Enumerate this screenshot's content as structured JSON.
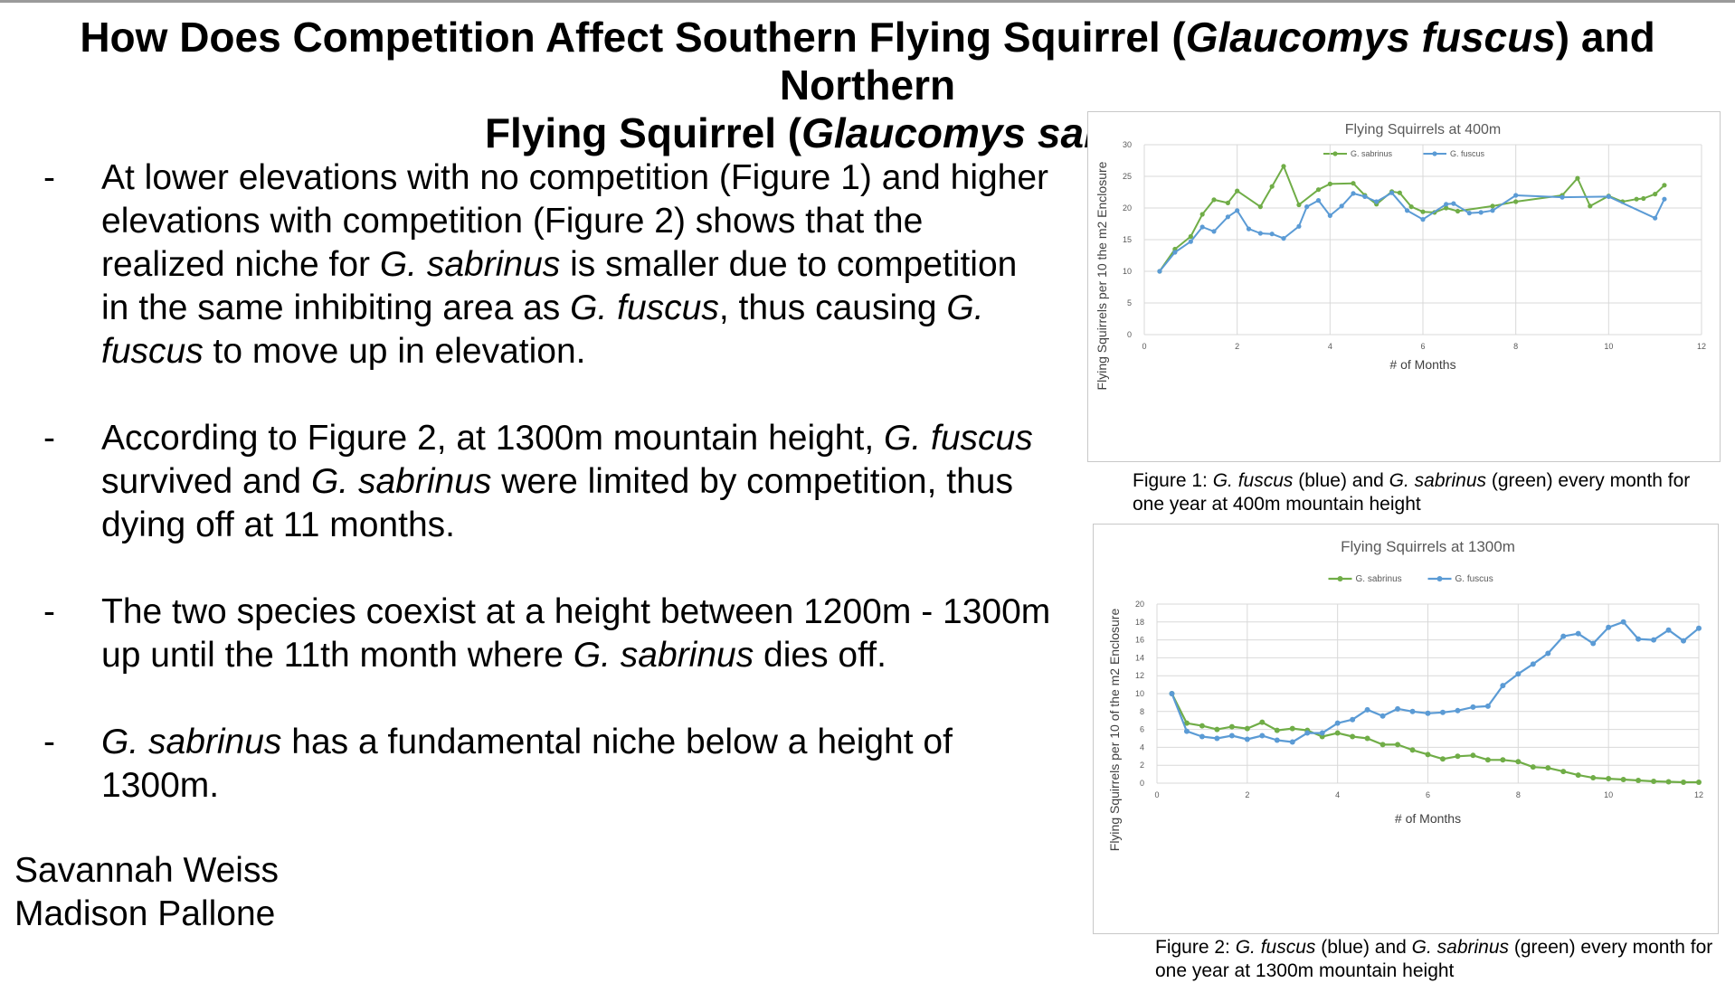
{
  "title": {
    "line1_a": "How Does Competition Affect Southern Flying Squirrel (",
    "line1_i": "Glaucomys fuscus",
    "line1_b": ") and Northern",
    "line2_a": "Flying Squirrel (",
    "line2_i": "Glaucomys sabrinus",
    "line2_b": ")?"
  },
  "bullets": [
    {
      "dash": "-",
      "parts": [
        {
          "t": "At lower elevations with no competition (Figure 1) and higher elevations with competition (Figure 2) shows that the realized niche for ",
          "i": false
        },
        {
          "t": "G. sabrinus",
          "i": true
        },
        {
          "t": " is smaller due to competition in the same inhibiting area as ",
          "i": false
        },
        {
          "t": "G. fuscus",
          "i": true
        },
        {
          "t": ", thus causing ",
          "i": false
        },
        {
          "t": "G. fuscus",
          "i": true
        },
        {
          "t": " to move up in elevation.",
          "i": false
        }
      ]
    },
    {
      "dash": "-",
      "parts": [
        {
          "t": "According to Figure 2, at 1300m mountain height, ",
          "i": false
        },
        {
          "t": "G. fuscus",
          "i": true
        },
        {
          "t": " survived and ",
          "i": false
        },
        {
          "t": "G. sabrinus",
          "i": true
        },
        {
          "t": " were limited by competition, thus dying off at 11 months.",
          "i": false
        }
      ]
    },
    {
      "dash": "-",
      "parts": [
        {
          "t": "The two species coexist at a height between 1200m - 1300m up until the 11th month where ",
          "i": false
        },
        {
          "t": "G. sabrinus",
          "i": true
        },
        {
          "t": " dies off.",
          "i": false
        }
      ]
    },
    {
      "dash": "-",
      "parts": [
        {
          "t": "G. sabrinus",
          "i": true
        },
        {
          "t": " has a fundamental niche below a height of 1300m.",
          "i": false
        }
      ]
    }
  ],
  "authors": [
    "Savannah Weiss",
    "Madison Pallone"
  ],
  "captions": [
    {
      "parts": [
        {
          "t": "Figure 1: ",
          "i": false
        },
        {
          "t": "G. fuscus",
          "i": true
        },
        {
          "t": " (blue) and ",
          "i": false
        },
        {
          "t": "G. sabrinus",
          "i": true
        },
        {
          "t": " (green) every month for one year at 400m mountain height",
          "i": false
        }
      ]
    },
    {
      "parts": [
        {
          "t": "Figure 2: ",
          "i": false
        },
        {
          "t": "G. fuscus",
          "i": true
        },
        {
          "t": " (blue) and ",
          "i": false
        },
        {
          "t": "G. sabrinus",
          "i": true
        },
        {
          "t": " (green) every month for one year at 1300m mountain height",
          "i": false
        }
      ]
    }
  ],
  "colors": {
    "green": "#70ad47",
    "blue": "#5b9bd5",
    "grid": "#d9d9d9",
    "axis_text": "#595959"
  },
  "chart_data": [
    {
      "type": "line",
      "title": "Flying Squirrels at 400m",
      "xlabel": "# of Months",
      "ylabel": "Flying Squirrels per 10  the m2 Enclosure",
      "xlim": [
        0,
        12
      ],
      "ylim": [
        0,
        30
      ],
      "xticks": [
        0,
        2,
        4,
        6,
        8,
        10,
        12
      ],
      "yticks": [
        0,
        5,
        10,
        15,
        20,
        25,
        30
      ],
      "grid": true,
      "legend": "top",
      "series": [
        {
          "name": "G. sabrinus",
          "color": "#70ad47",
          "points": [
            [
              0.33,
              10
            ],
            [
              0.66,
              13.5
            ],
            [
              1,
              15.5
            ],
            [
              1.25,
              19
            ],
            [
              1.5,
              21.3
            ],
            [
              1.8,
              20.8
            ],
            [
              2,
              22.7
            ],
            [
              2.5,
              20.2
            ],
            [
              2.75,
              23.4
            ],
            [
              3,
              26.6
            ],
            [
              3.33,
              20.5
            ],
            [
              3.75,
              22.9
            ],
            [
              4,
              23.8
            ],
            [
              4.5,
              23.9
            ],
            [
              4.75,
              22
            ],
            [
              5,
              20.6
            ],
            [
              5.33,
              22.6
            ],
            [
              5.5,
              22.4
            ],
            [
              5.75,
              20.2
            ],
            [
              6,
              19.4
            ],
            [
              6.25,
              19.3
            ],
            [
              6.5,
              20
            ],
            [
              6.75,
              19.5
            ],
            [
              7.5,
              20.3
            ],
            [
              8,
              21
            ],
            [
              9,
              22
            ],
            [
              9.33,
              24.7
            ],
            [
              9.6,
              20.3
            ],
            [
              10,
              21.9
            ],
            [
              10.3,
              21
            ],
            [
              10.6,
              21.4
            ],
            [
              10.75,
              21.5
            ],
            [
              11,
              22.2
            ],
            [
              11.2,
              23.6
            ]
          ]
        },
        {
          "name": "G. fuscus",
          "color": "#5b9bd5",
          "points": [
            [
              0.33,
              10
            ],
            [
              0.66,
              13
            ],
            [
              1,
              14.7
            ],
            [
              1.25,
              17
            ],
            [
              1.5,
              16.3
            ],
            [
              1.8,
              18.6
            ],
            [
              2,
              19.6
            ],
            [
              2.25,
              16.7
            ],
            [
              2.5,
              16
            ],
            [
              2.75,
              15.9
            ],
            [
              3,
              15.2
            ],
            [
              3.33,
              17.1
            ],
            [
              3.5,
              20.2
            ],
            [
              3.75,
              21.2
            ],
            [
              4,
              18.8
            ],
            [
              4.25,
              20.3
            ],
            [
              4.5,
              22.3
            ],
            [
              4.75,
              21.8
            ],
            [
              5,
              21
            ],
            [
              5.33,
              22.4
            ],
            [
              5.66,
              19.6
            ],
            [
              6,
              18.2
            ],
            [
              6.5,
              20.6
            ],
            [
              6.66,
              20.7
            ],
            [
              7,
              19.2
            ],
            [
              7.25,
              19.3
            ],
            [
              7.5,
              19.6
            ],
            [
              8,
              22
            ],
            [
              9,
              21.7
            ],
            [
              10,
              21.8
            ],
            [
              11,
              18.4
            ],
            [
              11.2,
              21.4
            ]
          ]
        }
      ]
    },
    {
      "type": "line",
      "title": "Flying Squirrels at 1300m",
      "xlabel": "# of Months",
      "ylabel": "Flying Squirrels per 10 of the  m2 Enclosure",
      "xlim": [
        0,
        12
      ],
      "ylim": [
        0,
        20
      ],
      "xticks": [
        0,
        2,
        4,
        6,
        8,
        10,
        12
      ],
      "yticks": [
        0,
        2,
        4,
        6,
        8,
        10,
        12,
        14,
        16,
        18,
        20
      ],
      "grid": true,
      "legend": "top",
      "series": [
        {
          "name": "G. sabrinus",
          "color": "#70ad47",
          "points": [
            [
              0.33,
              10
            ],
            [
              0.66,
              6.7
            ],
            [
              1,
              6.4
            ],
            [
              1.33,
              6
            ],
            [
              1.66,
              6.3
            ],
            [
              2,
              6.1
            ],
            [
              2.33,
              6.8
            ],
            [
              2.66,
              5.9
            ],
            [
              3,
              6.1
            ],
            [
              3.33,
              5.9
            ],
            [
              3.66,
              5.2
            ],
            [
              4,
              5.6
            ],
            [
              4.33,
              5.2
            ],
            [
              4.66,
              5
            ],
            [
              5,
              4.3
            ],
            [
              5.33,
              4.3
            ],
            [
              5.66,
              3.7
            ],
            [
              6,
              3.2
            ],
            [
              6.33,
              2.7
            ],
            [
              6.66,
              3
            ],
            [
              7,
              3.1
            ],
            [
              7.33,
              2.6
            ],
            [
              7.66,
              2.6
            ],
            [
              8,
              2.4
            ],
            [
              8.33,
              1.8
            ],
            [
              8.66,
              1.7
            ],
            [
              9,
              1.3
            ],
            [
              9.33,
              0.9
            ],
            [
              9.66,
              0.6
            ],
            [
              10,
              0.5
            ],
            [
              10.33,
              0.4
            ],
            [
              10.66,
              0.3
            ],
            [
              11,
              0.2
            ],
            [
              11.33,
              0.15
            ],
            [
              11.66,
              0.1
            ],
            [
              12,
              0.1
            ]
          ]
        },
        {
          "name": "G. fuscus",
          "color": "#5b9bd5",
          "points": [
            [
              0.33,
              10
            ],
            [
              0.66,
              5.8
            ],
            [
              1,
              5.2
            ],
            [
              1.33,
              5
            ],
            [
              1.66,
              5.3
            ],
            [
              2,
              4.9
            ],
            [
              2.33,
              5.3
            ],
            [
              2.66,
              4.8
            ],
            [
              3,
              4.6
            ],
            [
              3.33,
              5.6
            ],
            [
              3.66,
              5.6
            ],
            [
              4,
              6.7
            ],
            [
              4.33,
              7.1
            ],
            [
              4.66,
              8.2
            ],
            [
              5,
              7.5
            ],
            [
              5.33,
              8.3
            ],
            [
              5.66,
              8
            ],
            [
              6,
              7.8
            ],
            [
              6.33,
              7.9
            ],
            [
              6.66,
              8.1
            ],
            [
              7,
              8.5
            ],
            [
              7.33,
              8.6
            ],
            [
              7.66,
              10.9
            ],
            [
              8,
              12.2
            ],
            [
              8.33,
              13.3
            ],
            [
              8.66,
              14.5
            ],
            [
              9,
              16.4
            ],
            [
              9.33,
              16.7
            ],
            [
              9.66,
              15.6
            ],
            [
              10,
              17.4
            ],
            [
              10.33,
              18
            ],
            [
              10.66,
              16.1
            ],
            [
              11,
              16
            ],
            [
              11.33,
              17.1
            ],
            [
              11.66,
              15.9
            ],
            [
              12,
              17.3
            ]
          ]
        }
      ]
    }
  ]
}
